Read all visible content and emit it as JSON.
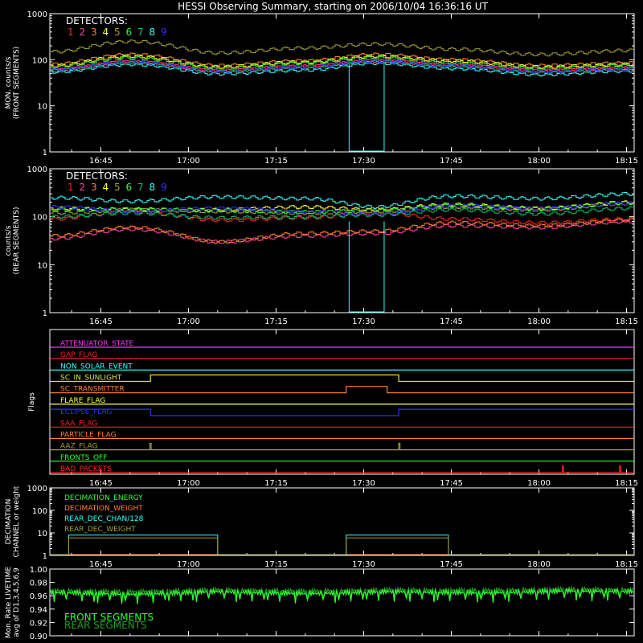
{
  "title": "HESSI Observing Summary, starting on 2006/10/04 16:36:16 UT",
  "x_ticks": [
    "16:45",
    "17:00",
    "17:15",
    "17:30",
    "17:45",
    "18:00",
    "18:15"
  ],
  "x_tick_minutes": [
    45,
    60,
    75,
    90,
    105,
    120,
    135
  ],
  "x_range_minutes": [
    36.27,
    136.3
  ],
  "detector_label": "DETECTORS:",
  "detectors": [
    {
      "name": "1",
      "color": "#ff2020"
    },
    {
      "name": "2",
      "color": "#ff40a0"
    },
    {
      "name": "3",
      "color": "#ff8030"
    },
    {
      "name": "4",
      "color": "#ffff40"
    },
    {
      "name": "5",
      "color": "#a0a030"
    },
    {
      "name": "6",
      "color": "#30ff30"
    },
    {
      "name": "7",
      "color": "#00c070"
    },
    {
      "name": "8",
      "color": "#30ffff"
    },
    {
      "name": "9",
      "color": "#3030ff"
    }
  ],
  "chart_data": [
    {
      "type": "line",
      "id": "front",
      "ylabel": "MON. counts/s\n(FRONT SEGMENTS)",
      "yscale": "log",
      "ylim": [
        1,
        1000
      ],
      "y_ticks": [
        "1",
        "10",
        "100",
        "1000"
      ],
      "series": [
        {
          "name": "1",
          "x": [
            37,
            50,
            65,
            80,
            92,
            105,
            120,
            136
          ],
          "y": [
            65,
            95,
            60,
            75,
            100,
            80,
            60,
            70
          ]
        },
        {
          "name": "2",
          "x": [
            37,
            50,
            65,
            80,
            92,
            105,
            120,
            136
          ],
          "y": [
            60,
            90,
            58,
            72,
            95,
            76,
            58,
            66
          ]
        },
        {
          "name": "3",
          "x": [
            37,
            50,
            65,
            80,
            92,
            105,
            120,
            136
          ],
          "y": [
            80,
            130,
            75,
            95,
            130,
            100,
            75,
            85
          ]
        },
        {
          "name": "4",
          "x": [
            37,
            50,
            65,
            80,
            92,
            105,
            120,
            136
          ],
          "y": [
            75,
            120,
            70,
            90,
            120,
            95,
            70,
            80
          ]
        },
        {
          "name": "5",
          "x": [
            37,
            50,
            65,
            80,
            92,
            105,
            120,
            136
          ],
          "y": [
            150,
            250,
            140,
            180,
            220,
            170,
            130,
            160
          ]
        },
        {
          "name": "6",
          "x": [
            37,
            50,
            65,
            80,
            92,
            105,
            120,
            136
          ],
          "y": [
            70,
            110,
            65,
            85,
            110,
            85,
            65,
            75
          ]
        },
        {
          "name": "7",
          "x": [
            37,
            50,
            65,
            80,
            92,
            105,
            120,
            136
          ],
          "y": [
            58,
            85,
            55,
            65,
            90,
            70,
            52,
            62
          ]
        },
        {
          "name": "8",
          "x": [
            37,
            50,
            65,
            80,
            92,
            105,
            120,
            136
          ],
          "y": [
            55,
            80,
            50,
            60,
            85,
            65,
            48,
            58
          ]
        },
        {
          "name": "9",
          "x": [
            37,
            50,
            65,
            80,
            92,
            105,
            120,
            136
          ],
          "y": [
            62,
            90,
            57,
            70,
            95,
            75,
            56,
            64
          ]
        }
      ]
    },
    {
      "type": "line",
      "id": "rear",
      "ylabel": "counts/s\n(REAR SEGMENTS)",
      "yscale": "log",
      "ylim": [
        1,
        1000
      ],
      "y_ticks": [
        "1",
        "10",
        "100",
        "1000"
      ],
      "series": [
        {
          "name": "1",
          "x": [
            37,
            50,
            65,
            80,
            92,
            105,
            120,
            136
          ],
          "y": [
            90,
            130,
            85,
            95,
            120,
            90,
            75,
            90
          ]
        },
        {
          "name": "2",
          "x": [
            37,
            50,
            65,
            80,
            92,
            105,
            120,
            136
          ],
          "y": [
            35,
            55,
            30,
            40,
            45,
            65,
            60,
            80
          ]
        },
        {
          "name": "3",
          "x": [
            37,
            50,
            65,
            80,
            92,
            105,
            120,
            136
          ],
          "y": [
            40,
            60,
            30,
            45,
            50,
            75,
            65,
            85
          ]
        },
        {
          "name": "4",
          "x": [
            37,
            50,
            65,
            80,
            92,
            105,
            120,
            136
          ],
          "y": [
            150,
            140,
            140,
            160,
            140,
            180,
            150,
            200
          ]
        },
        {
          "name": "5",
          "x": [
            37,
            50,
            65,
            80,
            92,
            105,
            120,
            136
          ],
          "y": [
            120,
            140,
            130,
            120,
            130,
            160,
            140,
            190
          ]
        },
        {
          "name": "6",
          "x": [
            37,
            50,
            65,
            80,
            92,
            105,
            120,
            136
          ],
          "y": [
            140,
            145,
            135,
            125,
            135,
            170,
            145,
            195
          ]
        },
        {
          "name": "7",
          "x": [
            37,
            50,
            65,
            80,
            92,
            105,
            120,
            136
          ],
          "y": [
            100,
            120,
            95,
            100,
            110,
            140,
            115,
            150
          ]
        },
        {
          "name": "8",
          "x": [
            37,
            50,
            65,
            80,
            92,
            105,
            120,
            136
          ],
          "y": [
            250,
            210,
            260,
            240,
            160,
            270,
            240,
            300
          ]
        },
        {
          "name": "9",
          "x": [
            37,
            50,
            65,
            80,
            92,
            105,
            120,
            136
          ],
          "y": [
            160,
            130,
            150,
            130,
            115,
            170,
            150,
            190
          ]
        }
      ]
    },
    {
      "type": "line",
      "id": "flags",
      "ylabel": "Flags",
      "series": [
        {
          "name": "ATTENUATOR_STATE",
          "color": "#ff30ff",
          "x": [
            36.3,
            136.3
          ],
          "y": [
            0,
            0
          ]
        },
        {
          "name": "GAP_FLAG",
          "color": "#ff2020",
          "x": [
            36.3,
            136.3
          ],
          "y": [
            0,
            0
          ]
        },
        {
          "name": "NON_SOLAR_EVENT",
          "color": "#30ffff",
          "x": [
            36.3,
            136.3
          ],
          "y": [
            0,
            0
          ]
        },
        {
          "name": "SC_IN_SUNLIGHT",
          "color": "#e0e040",
          "x": [
            36.3,
            53.5,
            53.5,
            96,
            96,
            136.3
          ],
          "y": [
            0,
            0,
            1,
            1,
            0,
            0
          ]
        },
        {
          "name": "SC_TRANSMITTER",
          "color": "#ff8030",
          "x": [
            36.3,
            87,
            87,
            94,
            94,
            136.3
          ],
          "y": [
            0,
            0,
            1,
            1,
            0,
            0
          ]
        },
        {
          "name": "FLARE_FLAG",
          "color": "#ffff40",
          "x": [
            36.3,
            136.3
          ],
          "y": [
            0,
            0
          ]
        },
        {
          "name": "ECLIPSE_FLAG",
          "color": "#3030ff",
          "x": [
            36.3,
            53.5,
            53.5,
            96,
            96,
            136.3
          ],
          "y": [
            1,
            1,
            0,
            0,
            1,
            1
          ]
        },
        {
          "name": "SAA_FLAG",
          "color": "#ff2020",
          "x": [
            36.3,
            136.3
          ],
          "y": [
            0,
            0
          ]
        },
        {
          "name": "PARTICLE_FLAG",
          "color": "#ff8030",
          "x": [
            36.3,
            136.3
          ],
          "y": [
            0,
            0
          ]
        },
        {
          "name": "AAZ_FLAG",
          "color": "#a0a030",
          "x": [
            36.3,
            53.4,
            53.4,
            53.6,
            53.6,
            96,
            96,
            96.2,
            96.2,
            136.3
          ],
          "y": [
            0,
            0,
            1,
            1,
            0,
            0,
            1,
            1,
            0,
            0
          ]
        },
        {
          "name": "FRONTS_OFF",
          "color": "#30ff30",
          "x": [
            36.3,
            136.3
          ],
          "y": [
            0,
            0
          ]
        },
        {
          "name": "BAD_PACKETS",
          "color": "#ff2020",
          "x": [
            36.3,
            124,
            124,
            124.2,
            124.2,
            133.8,
            133.8,
            134,
            134,
            136.3
          ],
          "y": [
            0,
            0,
            1,
            1,
            0,
            0,
            1,
            1,
            0,
            0
          ]
        }
      ]
    },
    {
      "type": "line",
      "id": "decimation",
      "ylabel": "DECIMATION\nCHANNEL or weight",
      "yscale": "log",
      "ylim": [
        1,
        1000
      ],
      "y_ticks": [
        "1",
        "10",
        "100",
        "1000"
      ],
      "series": [
        {
          "name": "DECIMATION_ENERGY",
          "color": "#30ff30",
          "x": [
            36.3,
            136.3
          ],
          "y": [
            1,
            1
          ]
        },
        {
          "name": "DECIMATION_WEIGHT",
          "color": "#ff8030",
          "x": [
            36.3,
            136.3
          ],
          "y": [
            1,
            1
          ]
        },
        {
          "name": "REAR_DEC_CHAN/128",
          "color": "#30ffff",
          "x": [
            36.3,
            39.5,
            39.5,
            65,
            65,
            87,
            87,
            104.5,
            104.5,
            136.3
          ],
          "y": [
            1,
            1,
            8,
            8,
            1,
            1,
            8,
            8,
            1,
            1
          ]
        },
        {
          "name": "REAR_DEC_WEIGHT",
          "color": "#a0a030",
          "x": [
            36.3,
            39.5,
            39.5,
            65,
            65,
            87,
            87,
            104.5,
            104.5,
            136.3
          ],
          "y": [
            1,
            1,
            6,
            6,
            1,
            1,
            6,
            6,
            1,
            1
          ]
        }
      ]
    },
    {
      "type": "line",
      "id": "livetime",
      "ylabel": "Mon. Rate LIVETIME\navg of D1,3,4,5,6,9",
      "ylim": [
        0.9,
        1.0
      ],
      "y_ticks": [
        "0.90",
        "0.92",
        "0.94",
        "0.96",
        "0.98",
        "1.00"
      ],
      "series": [
        {
          "name": "FRONT SEGMENTS",
          "color": "#30ff30",
          "x": [
            36.3,
            50,
            65,
            80,
            95,
            110,
            125,
            136.3
          ],
          "y": [
            0.965,
            0.962,
            0.966,
            0.963,
            0.966,
            0.964,
            0.967,
            0.966
          ]
        },
        {
          "name": "REAR SEGMENTS",
          "color": "#20a020",
          "x": [
            36.3,
            50,
            65,
            80,
            95,
            110,
            125,
            136.3
          ],
          "y": [
            0.968,
            0.966,
            0.969,
            0.967,
            0.969,
            0.968,
            0.97,
            0.969
          ]
        }
      ]
    }
  ]
}
